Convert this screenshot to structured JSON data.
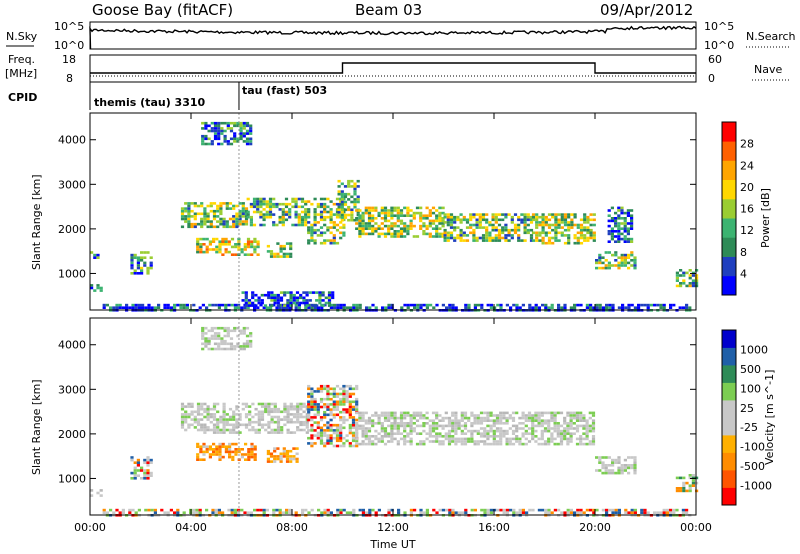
{
  "header": {
    "station": "Goose Bay (fitACF)",
    "beam": "Beam 03",
    "date": "09/Apr/2012"
  },
  "noise_panel": {
    "left_label": "N.Sky",
    "right_label": "N.Search",
    "left_ticks": [
      "10^5",
      "10^0"
    ],
    "right_ticks": [
      "10^5",
      "10^0"
    ]
  },
  "freq_panel": {
    "left_label_line1": "Freq.",
    "left_label_line2": "[MHz]",
    "right_label": "Nave",
    "left_ticks": [
      "18",
      "8"
    ],
    "right_ticks": [
      "60",
      "0"
    ]
  },
  "cpid_panel": {
    "label": "CPID",
    "modes": [
      {
        "name": "themis (tau) 3310",
        "start_hour": 0
      },
      {
        "name": "tau (fast) 503",
        "start_hour": 5.9
      }
    ]
  },
  "colors": {
    "power_scale": [
      "#0000ff",
      "#1f3fbf",
      "#2e8b57",
      "#3cb371",
      "#9acd32",
      "#ffd700",
      "#ffa500",
      "#ff6000",
      "#ff0000"
    ],
    "velocity_scale": [
      "#ff0000",
      "#ff5500",
      "#ff8c00",
      "#ffb000",
      "#c8c8c8",
      "#c8c8c8",
      "#7ccd52",
      "#2e8b57",
      "#1f5fa8",
      "#0000cc"
    ]
  },
  "chart_data": [
    {
      "type": "heatmap",
      "panel": "power",
      "ylabel": "Slant Range [km]",
      "colorbar_label": "Power [dB]",
      "colorbar_ticks": [
        "4",
        "8",
        "12",
        "16",
        "20",
        "24",
        "28"
      ],
      "xlim": [
        0,
        24
      ],
      "ylim": [
        180,
        4600
      ],
      "yticks": [
        "1000",
        "2000",
        "3000",
        "4000"
      ],
      "regions": [
        {
          "t": [
            0.0,
            0.4
          ],
          "r": [
            600,
            760
          ],
          "level": 0.2
        },
        {
          "t": [
            0.0,
            0.3
          ],
          "r": [
            1300,
            1500
          ],
          "level": 0.25
        },
        {
          "t": [
            1.6,
            2.4
          ],
          "r": [
            1000,
            1500
          ],
          "level": 0.35
        },
        {
          "t": [
            3.6,
            6.2
          ],
          "r": [
            2050,
            2600
          ],
          "level": 0.45
        },
        {
          "t": [
            6.2,
            8.6
          ],
          "r": [
            2100,
            2700
          ],
          "level": 0.4
        },
        {
          "t": [
            4.2,
            5.2
          ],
          "r": [
            1450,
            1800
          ],
          "level": 0.55
        },
        {
          "t": [
            5.2,
            6.6
          ],
          "r": [
            1400,
            1800
          ],
          "level": 0.6
        },
        {
          "t": [
            7.0,
            8.0
          ],
          "r": [
            1400,
            1700
          ],
          "level": 0.5
        },
        {
          "t": [
            8.6,
            10.0
          ],
          "r": [
            1700,
            2700
          ],
          "level": 0.45
        },
        {
          "t": [
            9.8,
            10.6
          ],
          "r": [
            2200,
            3100
          ],
          "level": 0.4
        },
        {
          "t": [
            10.5,
            14.0
          ],
          "r": [
            1800,
            2500
          ],
          "level": 0.5
        },
        {
          "t": [
            14.0,
            17.5
          ],
          "r": [
            1750,
            2350
          ],
          "level": 0.45
        },
        {
          "t": [
            17.5,
            20.0
          ],
          "r": [
            1700,
            2350
          ],
          "level": 0.5
        },
        {
          "t": [
            20.0,
            21.6
          ],
          "r": [
            1100,
            1500
          ],
          "level": 0.45
        },
        {
          "t": [
            20.5,
            21.4
          ],
          "r": [
            1700,
            2500
          ],
          "level": 0.2
        },
        {
          "t": [
            23.2,
            24.0
          ],
          "r": [
            700,
            1100
          ],
          "level": 0.4
        },
        {
          "t": [
            4.4,
            6.4
          ],
          "r": [
            3900,
            4400
          ],
          "level": 0.2
        },
        {
          "t": [
            0.5,
            23.8
          ],
          "r": [
            200,
            320
          ],
          "level": 0.15
        },
        {
          "t": [
            6.0,
            9.6
          ],
          "r": [
            300,
            600
          ],
          "level": 0.2
        }
      ]
    },
    {
      "type": "heatmap",
      "panel": "velocity",
      "xlabel": "Time UT",
      "ylabel": "Slant Range [km]",
      "colorbar_label": "Velocity [m s^-1]",
      "colorbar_ticks": [
        "1000",
        "500",
        "100",
        "25",
        "-25",
        "-100",
        "-500",
        "-1000"
      ],
      "xlim": [
        0,
        24
      ],
      "xticks": [
        "00:00",
        "04:00",
        "08:00",
        "12:00",
        "16:00",
        "20:00",
        "00:00"
      ],
      "ylim": [
        180,
        4600
      ],
      "yticks": [
        "1000",
        "2000",
        "3000",
        "4000"
      ],
      "regions": [
        {
          "t": [
            0.0,
            0.4
          ],
          "r": [
            600,
            760
          ],
          "kind": "gray"
        },
        {
          "t": [
            1.6,
            2.4
          ],
          "r": [
            1000,
            1500
          ],
          "kind": "mixed"
        },
        {
          "t": [
            3.6,
            8.6
          ],
          "r": [
            2050,
            2700
          ],
          "kind": "gray"
        },
        {
          "t": [
            4.2,
            6.6
          ],
          "r": [
            1400,
            1800
          ],
          "kind": "orange"
        },
        {
          "t": [
            7.0,
            8.2
          ],
          "r": [
            1400,
            1700
          ],
          "kind": "orange"
        },
        {
          "t": [
            8.6,
            10.6
          ],
          "r": [
            1700,
            3100
          ],
          "kind": "mixed"
        },
        {
          "t": [
            10.5,
            20.0
          ],
          "r": [
            1750,
            2500
          ],
          "kind": "gray"
        },
        {
          "t": [
            20.0,
            21.6
          ],
          "r": [
            1100,
            1500
          ],
          "kind": "gray"
        },
        {
          "t": [
            23.2,
            24.0
          ],
          "r": [
            700,
            1100
          ],
          "kind": "green"
        },
        {
          "t": [
            4.4,
            6.4
          ],
          "r": [
            3900,
            4400
          ],
          "kind": "gray"
        },
        {
          "t": [
            0.5,
            23.8
          ],
          "r": [
            200,
            320
          ],
          "kind": "mixed"
        }
      ]
    }
  ]
}
